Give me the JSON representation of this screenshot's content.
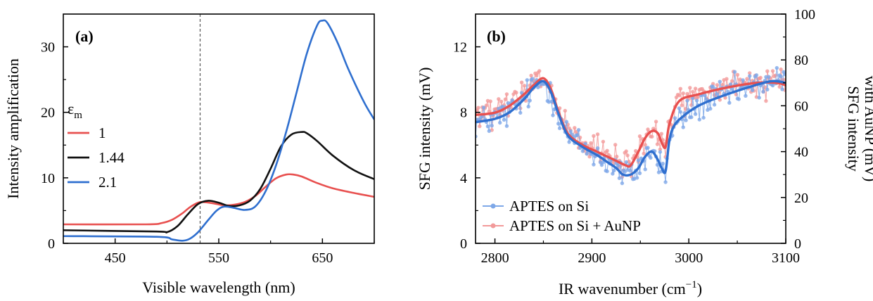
{
  "chart_data": [
    {
      "type": "line",
      "panel_label": "(a)",
      "xlabel": "Visible wavelength (nm)",
      "ylabel": "Intensity amplification",
      "xlim": [
        400,
        700
      ],
      "ylim": [
        0,
        35
      ],
      "xticks": [
        450,
        550,
        650
      ],
      "yticks": [
        0,
        10,
        20,
        30
      ],
      "legend_title": "ε",
      "legend_title_subscript": "m",
      "legend_position": "left",
      "reference_line": {
        "x": 532,
        "style": "dashed"
      },
      "series": [
        {
          "name": "1",
          "color": "#e8504f",
          "x": [
            400,
            480,
            495,
            505,
            515,
            522,
            530,
            535,
            545,
            555,
            565,
            575,
            585,
            595,
            605,
            615,
            622,
            630,
            645,
            660,
            680,
            700
          ],
          "y": [
            2.9,
            2.9,
            3.1,
            3.6,
            4.6,
            5.5,
            6.2,
            6.3,
            6.1,
            5.8,
            5.9,
            6.3,
            7.2,
            8.6,
            9.9,
            10.5,
            10.5,
            10.2,
            9.2,
            8.4,
            7.7,
            7.1
          ]
        },
        {
          "name": "1.44",
          "color": "#111111",
          "x": [
            400,
            490,
            500,
            510,
            520,
            530,
            540,
            550,
            560,
            570,
            580,
            590,
            600,
            610,
            620,
            630,
            635,
            645,
            660,
            680,
            700
          ],
          "y": [
            2.0,
            1.8,
            1.7,
            2.6,
            4.4,
            6.0,
            6.5,
            6.2,
            5.7,
            5.8,
            6.5,
            8.3,
            11.4,
            14.8,
            16.6,
            17.0,
            16.8,
            15.6,
            13.4,
            11.2,
            9.8
          ]
        },
        {
          "name": "2.1",
          "color": "#2f6fcf",
          "x": [
            400,
            490,
            505,
            515,
            522,
            530,
            540,
            548,
            555,
            565,
            575,
            585,
            595,
            605,
            615,
            625,
            635,
            645,
            650,
            655,
            665,
            675,
            690,
            700
          ],
          "y": [
            1.1,
            1.0,
            0.6,
            0.4,
            0.7,
            1.7,
            3.6,
            5.0,
            5.6,
            5.4,
            5.1,
            5.6,
            7.9,
            11.8,
            17.0,
            23.0,
            29.0,
            33.3,
            34.0,
            33.6,
            30.5,
            26.6,
            21.6,
            18.9
          ]
        }
      ]
    },
    {
      "type": "line",
      "panel_label": "(b)",
      "xlabel": "IR wavenumber (cm",
      "xlabel_superscript": "−1",
      "xlabel_suffix": ")",
      "ylabel": "SFG intensity (mV)",
      "ylabel_right_line1": "SFG intensity",
      "ylabel_right_line2": "with AuNP (mV)",
      "xlim": [
        2780,
        3100
      ],
      "ylim": [
        0,
        14
      ],
      "ylim_right": [
        0,
        100
      ],
      "xticks": [
        2800,
        2900,
        3000,
        3100
      ],
      "yticks": [
        0,
        4,
        8,
        12
      ],
      "yticks_right": [
        0,
        20,
        40,
        60,
        80,
        100
      ],
      "legend_position": "bottom-left",
      "series": [
        {
          "name": "APTES on Si",
          "color": "#2f6fcf",
          "marker_color": "#7ea8e8",
          "axis": "left",
          "x": [
            2780,
            2800,
            2815,
            2830,
            2840,
            2850,
            2858,
            2865,
            2875,
            2890,
            2905,
            2915,
            2925,
            2932,
            2940,
            2948,
            2955,
            2962,
            2968,
            2972,
            2976,
            2980,
            2985,
            2995,
            3010,
            3030,
            3060,
            3085,
            3100
          ],
          "y": [
            7.4,
            7.6,
            8.0,
            8.8,
            9.5,
            9.9,
            9.2,
            8.0,
            6.6,
            5.9,
            5.4,
            5.0,
            4.6,
            4.2,
            4.2,
            4.6,
            5.3,
            5.6,
            5.1,
            4.6,
            4.4,
            6.3,
            7.2,
            7.8,
            8.4,
            8.9,
            9.5,
            9.9,
            9.8
          ]
        },
        {
          "name": "APTES on Si + AuNP",
          "color": "#e8504f",
          "marker_color": "#f29a9a",
          "axis": "right",
          "x": [
            2780,
            2800,
            2815,
            2830,
            2840,
            2850,
            2858,
            2865,
            2875,
            2890,
            2905,
            2915,
            2925,
            2935,
            2940,
            2948,
            2955,
            2962,
            2968,
            2972,
            2976,
            2980,
            2990,
            3010,
            3040,
            3070,
            3090,
            3100
          ],
          "y": [
            56,
            57,
            60,
            65,
            69,
            72,
            67,
            58,
            48,
            43,
            40,
            38,
            36,
            34,
            34,
            40,
            46,
            49,
            48,
            44,
            42,
            52,
            62,
            65,
            68,
            70,
            70,
            69
          ]
        }
      ]
    }
  ]
}
